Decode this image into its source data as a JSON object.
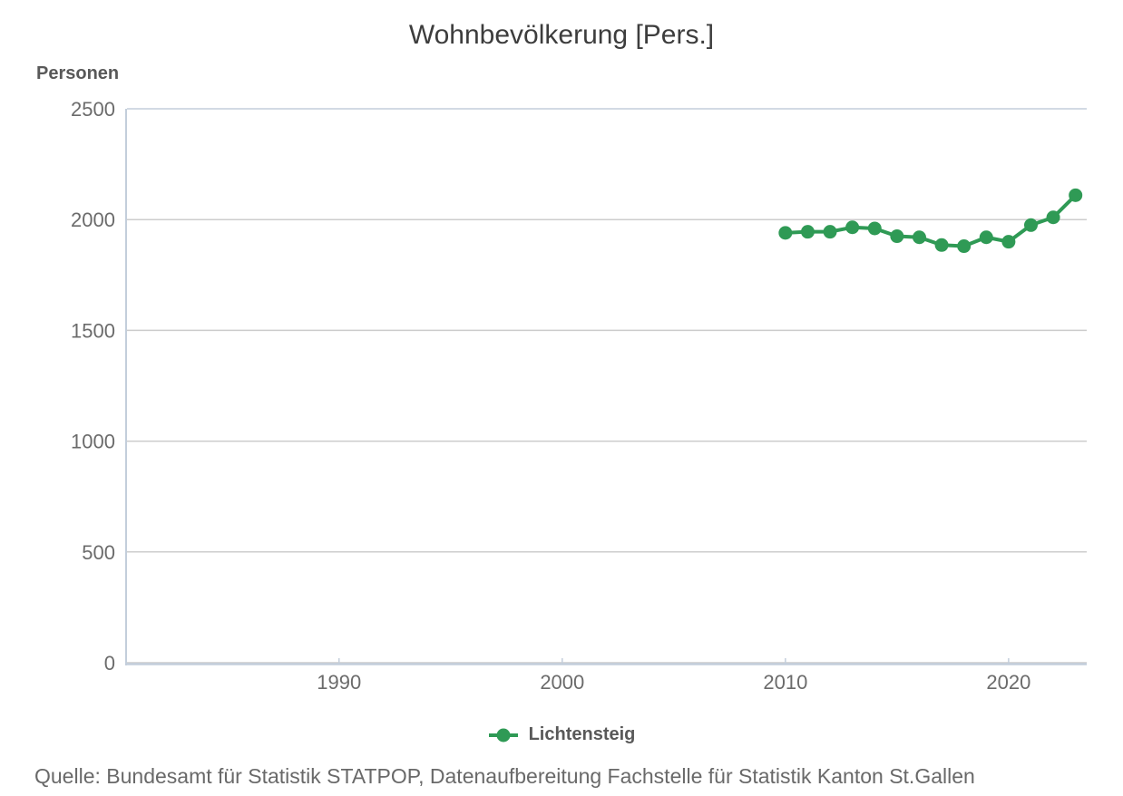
{
  "page": {
    "title": "Wohnbevölkerung [Pers.]"
  },
  "y_axis": {
    "title": "Personen"
  },
  "legend": {
    "label": "Lichtensteig"
  },
  "source": {
    "text": "Quelle: Bundesamt für Statistik STATPOP, Datenaufbereitung Fachstelle für Statistik Kanton St.Gallen"
  },
  "chart_data": {
    "type": "line",
    "title": "Wohnbevölkerung [Pers.]",
    "xlabel": "",
    "ylabel": "Personen",
    "ylim": [
      0,
      2500
    ],
    "xlim": [
      1980.5,
      2023.5
    ],
    "y_ticks": [
      2500,
      2000,
      1500,
      1000,
      500,
      0
    ],
    "x_ticks": [
      1990,
      2000,
      2010,
      2020
    ],
    "grid": true,
    "legend_position": "bottom",
    "series": [
      {
        "name": "Lichtensteig",
        "color": "#2f9a55",
        "x": [
          2010,
          2011,
          2012,
          2013,
          2014,
          2015,
          2016,
          2017,
          2018,
          2019,
          2020,
          2021,
          2022,
          2023
        ],
        "values": [
          1940,
          1945,
          1945,
          1965,
          1960,
          1925,
          1920,
          1885,
          1880,
          1920,
          1900,
          1975,
          2010,
          2110
        ]
      }
    ],
    "colors": {
      "grid": "#cccccc",
      "axis": "#c3cedb",
      "tick_text": "#6b6b6b"
    }
  }
}
